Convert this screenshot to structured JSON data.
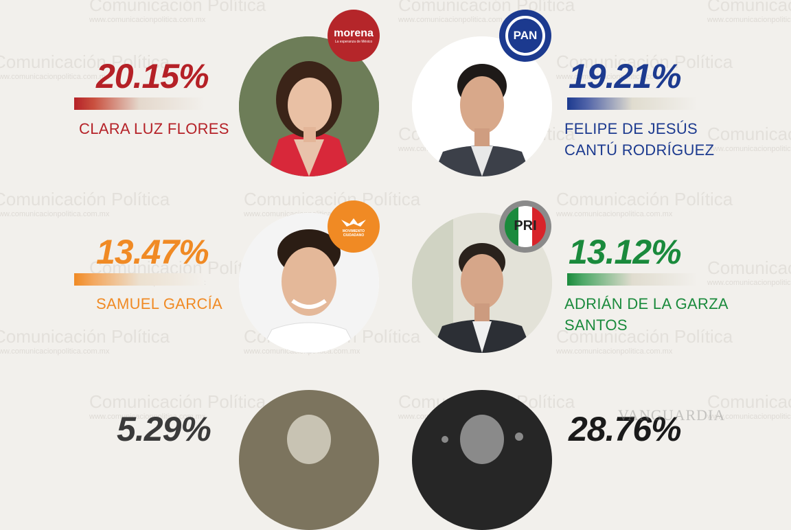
{
  "watermark": {
    "brand": "Comunicación Política",
    "url": "www.comunicacionpolitica.com.mx"
  },
  "candidates": [
    {
      "name_lines": [
        "CLARA LUZ FLORES"
      ],
      "percent": "20.15%",
      "party": "morena",
      "party_tagline": "La esperanza de México",
      "color": "#b52127"
    },
    {
      "name_lines": [
        "FELIPE DE JESÚS",
        "CANTÚ RODRÍGUEZ"
      ],
      "percent": "19.21%",
      "party": "PAN",
      "color": "#1c3a8f"
    },
    {
      "name_lines": [
        "SAMUEL GARCÍA"
      ],
      "percent": "13.47%",
      "party": "MOVIMIENTO CIUDADANO",
      "color": "#f08a24"
    },
    {
      "name_lines": [
        "ADRIÁN DE LA GARZA",
        "SANTOS"
      ],
      "percent": "13.12%",
      "party": "PRI",
      "color": "#1a8a3c"
    },
    {
      "name_lines": [],
      "percent": "5.29%",
      "party": "",
      "color": "#3a3a3a"
    },
    {
      "name_lines": [],
      "percent": "28.76%",
      "party": "",
      "color": "#1a1a1a"
    }
  ],
  "corner_watermark": "VANGUARDIA"
}
